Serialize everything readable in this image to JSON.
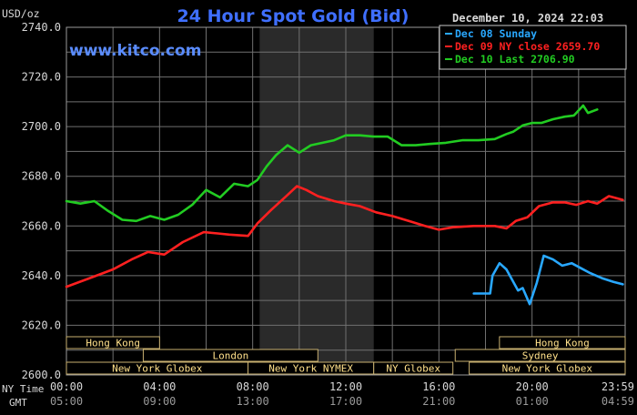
{
  "header": {
    "unit": "USD/oz",
    "title": "24 Hour Spot Gold (Bid)",
    "datetime": "December 10, 2024 22:03",
    "brand": "www.kitco.com",
    "axis_name_ny": "NY Time",
    "axis_name_gmt": "GMT"
  },
  "colors": {
    "background": "#000000",
    "grid": "#707070",
    "shade": "#2a2a2a",
    "text": "#d8d8d8",
    "title": "#3f6fff",
    "brand": "#5a8cff",
    "session_text": "#ffe08a",
    "session_border": "#c8b070"
  },
  "legend": [
    {
      "label": "Dec 08 Sunday",
      "color": "#29a8ff"
    },
    {
      "label": "Dec 09 NY close 2659.70",
      "color": "#ff2020"
    },
    {
      "label": "Dec 10 Last 2706.90",
      "color": "#22cc22"
    }
  ],
  "sessions": [
    {
      "label": "Hong Kong",
      "row": 0,
      "start": 0,
      "end": 4
    },
    {
      "label": "Hong Kong",
      "row": 0,
      "start": 18.6,
      "end": 24
    },
    {
      "label": "London",
      "row": 1,
      "start": 3.3,
      "end": 10.8
    },
    {
      "label": "Sydney",
      "row": 1,
      "start": 16.7,
      "end": 24
    },
    {
      "label": "New York Globex",
      "row": 2,
      "start": 0,
      "end": 7.8
    },
    {
      "label": "New York NYMEX",
      "row": 2,
      "start": 7.8,
      "end": 13.2
    },
    {
      "label": "NY Globex",
      "row": 2,
      "start": 13.2,
      "end": 16.6
    },
    {
      "label": "New York Globex",
      "row": 2,
      "start": 17.3,
      "end": 24
    }
  ],
  "chart_data": {
    "type": "line",
    "title": "24 Hour Spot Gold (Bid)",
    "ylabel": "USD/oz",
    "ylim": [
      2600,
      2740
    ],
    "xlim": [
      0,
      24
    ],
    "yticks": [
      "2600.0",
      "2620.0",
      "2640.0",
      "2660.0",
      "2680.0",
      "2700.0",
      "2720.0",
      "2740.0"
    ],
    "xticks_ny": [
      "00:00",
      "04:00",
      "08:00",
      "12:00",
      "16:00",
      "20:00",
      "23:59"
    ],
    "xticks_gmt": [
      "05:00",
      "09:00",
      "13:00",
      "17:00",
      "21:00",
      "01:00",
      "04:59"
    ],
    "shaded_range": [
      8.3,
      13.2
    ],
    "grid": true,
    "legend_position": "top-right",
    "series": [
      {
        "name": "Dec 08 Sunday",
        "x": [
          17.5,
          18.2,
          18.3,
          18.6,
          18.9,
          19.4,
          19.6,
          19.9,
          20.2,
          20.5,
          20.9,
          21.3,
          21.7,
          22.1,
          22.5,
          23.0,
          23.5,
          23.9
        ],
        "y": [
          2632.8,
          2632.8,
          2640.0,
          2645.0,
          2642.5,
          2634.0,
          2635.0,
          2628.5,
          2637.0,
          2648.0,
          2646.5,
          2644.0,
          2645.0,
          2643.0,
          2641.0,
          2639.0,
          2637.5,
          2636.5
        ]
      },
      {
        "name": "Dec 09 NY close 2659.70",
        "x": [
          0,
          1.0,
          2.0,
          2.8,
          3.5,
          4.2,
          5.0,
          5.9,
          6.5,
          7.0,
          7.8,
          8.2,
          8.8,
          9.5,
          9.9,
          10.3,
          10.8,
          11.5,
          12.0,
          12.6,
          13.3,
          14.0,
          14.7,
          15.4,
          16.0,
          16.6,
          17.5,
          18.4,
          18.9,
          19.3,
          19.8,
          20.3,
          20.9,
          21.4,
          21.9,
          22.4,
          22.8,
          23.3,
          23.9
        ],
        "y": [
          2635.5,
          2639.0,
          2642.5,
          2646.5,
          2649.5,
          2648.5,
          2653.5,
          2657.5,
          2657.0,
          2656.5,
          2656.0,
          2661.0,
          2666.5,
          2672.5,
          2676.0,
          2674.5,
          2672.0,
          2670.0,
          2669.0,
          2668.0,
          2665.5,
          2664.0,
          2662.0,
          2660.0,
          2658.5,
          2659.5,
          2660.0,
          2660.0,
          2659.0,
          2662.0,
          2663.5,
          2668.0,
          2669.5,
          2669.5,
          2668.5,
          2670.0,
          2669.0,
          2672.0,
          2670.5
        ]
      },
      {
        "name": "Dec 10 Last 2706.90",
        "x": [
          0,
          0.6,
          1.2,
          1.8,
          2.4,
          3.0,
          3.6,
          4.2,
          4.8,
          5.4,
          6.0,
          6.6,
          7.2,
          7.8,
          8.2,
          8.6,
          9.0,
          9.5,
          10.0,
          10.5,
          11.0,
          11.5,
          12.0,
          12.6,
          13.2,
          13.8,
          14.4,
          15.0,
          15.6,
          16.3,
          17.0,
          17.7,
          18.4,
          18.9,
          19.2,
          19.6,
          20.0,
          20.4,
          20.9,
          21.4,
          21.8,
          22.2,
          22.4,
          22.8
        ],
        "y": [
          2670.0,
          2669.0,
          2670.0,
          2666.0,
          2662.5,
          2662.0,
          2664.0,
          2662.5,
          2664.5,
          2668.5,
          2674.5,
          2671.5,
          2677.0,
          2676.0,
          2678.5,
          2684.0,
          2688.5,
          2692.5,
          2689.5,
          2692.5,
          2693.5,
          2694.5,
          2696.5,
          2696.5,
          2696.0,
          2696.0,
          2692.5,
          2692.5,
          2693.0,
          2693.5,
          2694.5,
          2694.5,
          2695.0,
          2697.0,
          2698.0,
          2700.5,
          2701.5,
          2701.5,
          2703.0,
          2704.0,
          2704.5,
          2708.5,
          2705.5,
          2706.9
        ]
      }
    ]
  }
}
